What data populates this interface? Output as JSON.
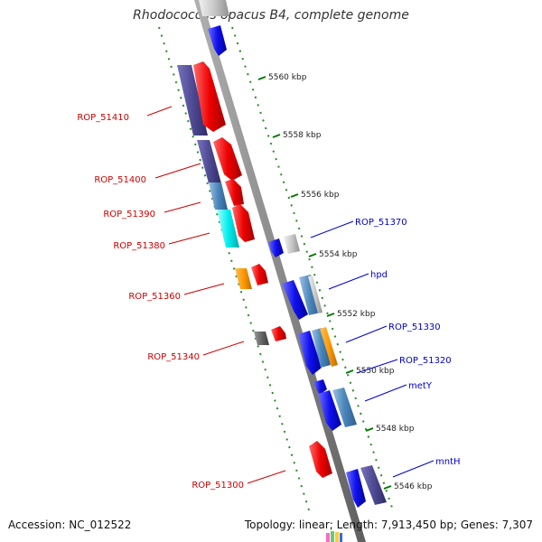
{
  "title": "Rhodococcus opacus B4, complete genome",
  "footer": {
    "accession": "Accession: NC_012522",
    "summary": "Topology: linear; Length: 7,913,450 bp; Genes: 7,307"
  },
  "colors": {
    "forward_label": "#cc0000",
    "reverse_label": "#0000cc",
    "backbone": "#7d7d7d",
    "ruler": "#007700"
  },
  "ruler_ticks": [
    "5560 kbp",
    "5558 kbp",
    "5556 kbp",
    "5554 kbp",
    "5552 kbp",
    "5550 kbp",
    "5548 kbp",
    "5546 kbp"
  ],
  "gene_labels_forward": [
    "ROP_51410",
    "ROP_51400",
    "ROP_51390",
    "ROP_51380",
    "ROP_51360",
    "ROP_51340",
    "ROP_51300"
  ],
  "gene_labels_reverse": [
    "ROP_51370",
    "hpd",
    "ROP_51330",
    "ROP_51320",
    "metY",
    "mntH"
  ]
}
